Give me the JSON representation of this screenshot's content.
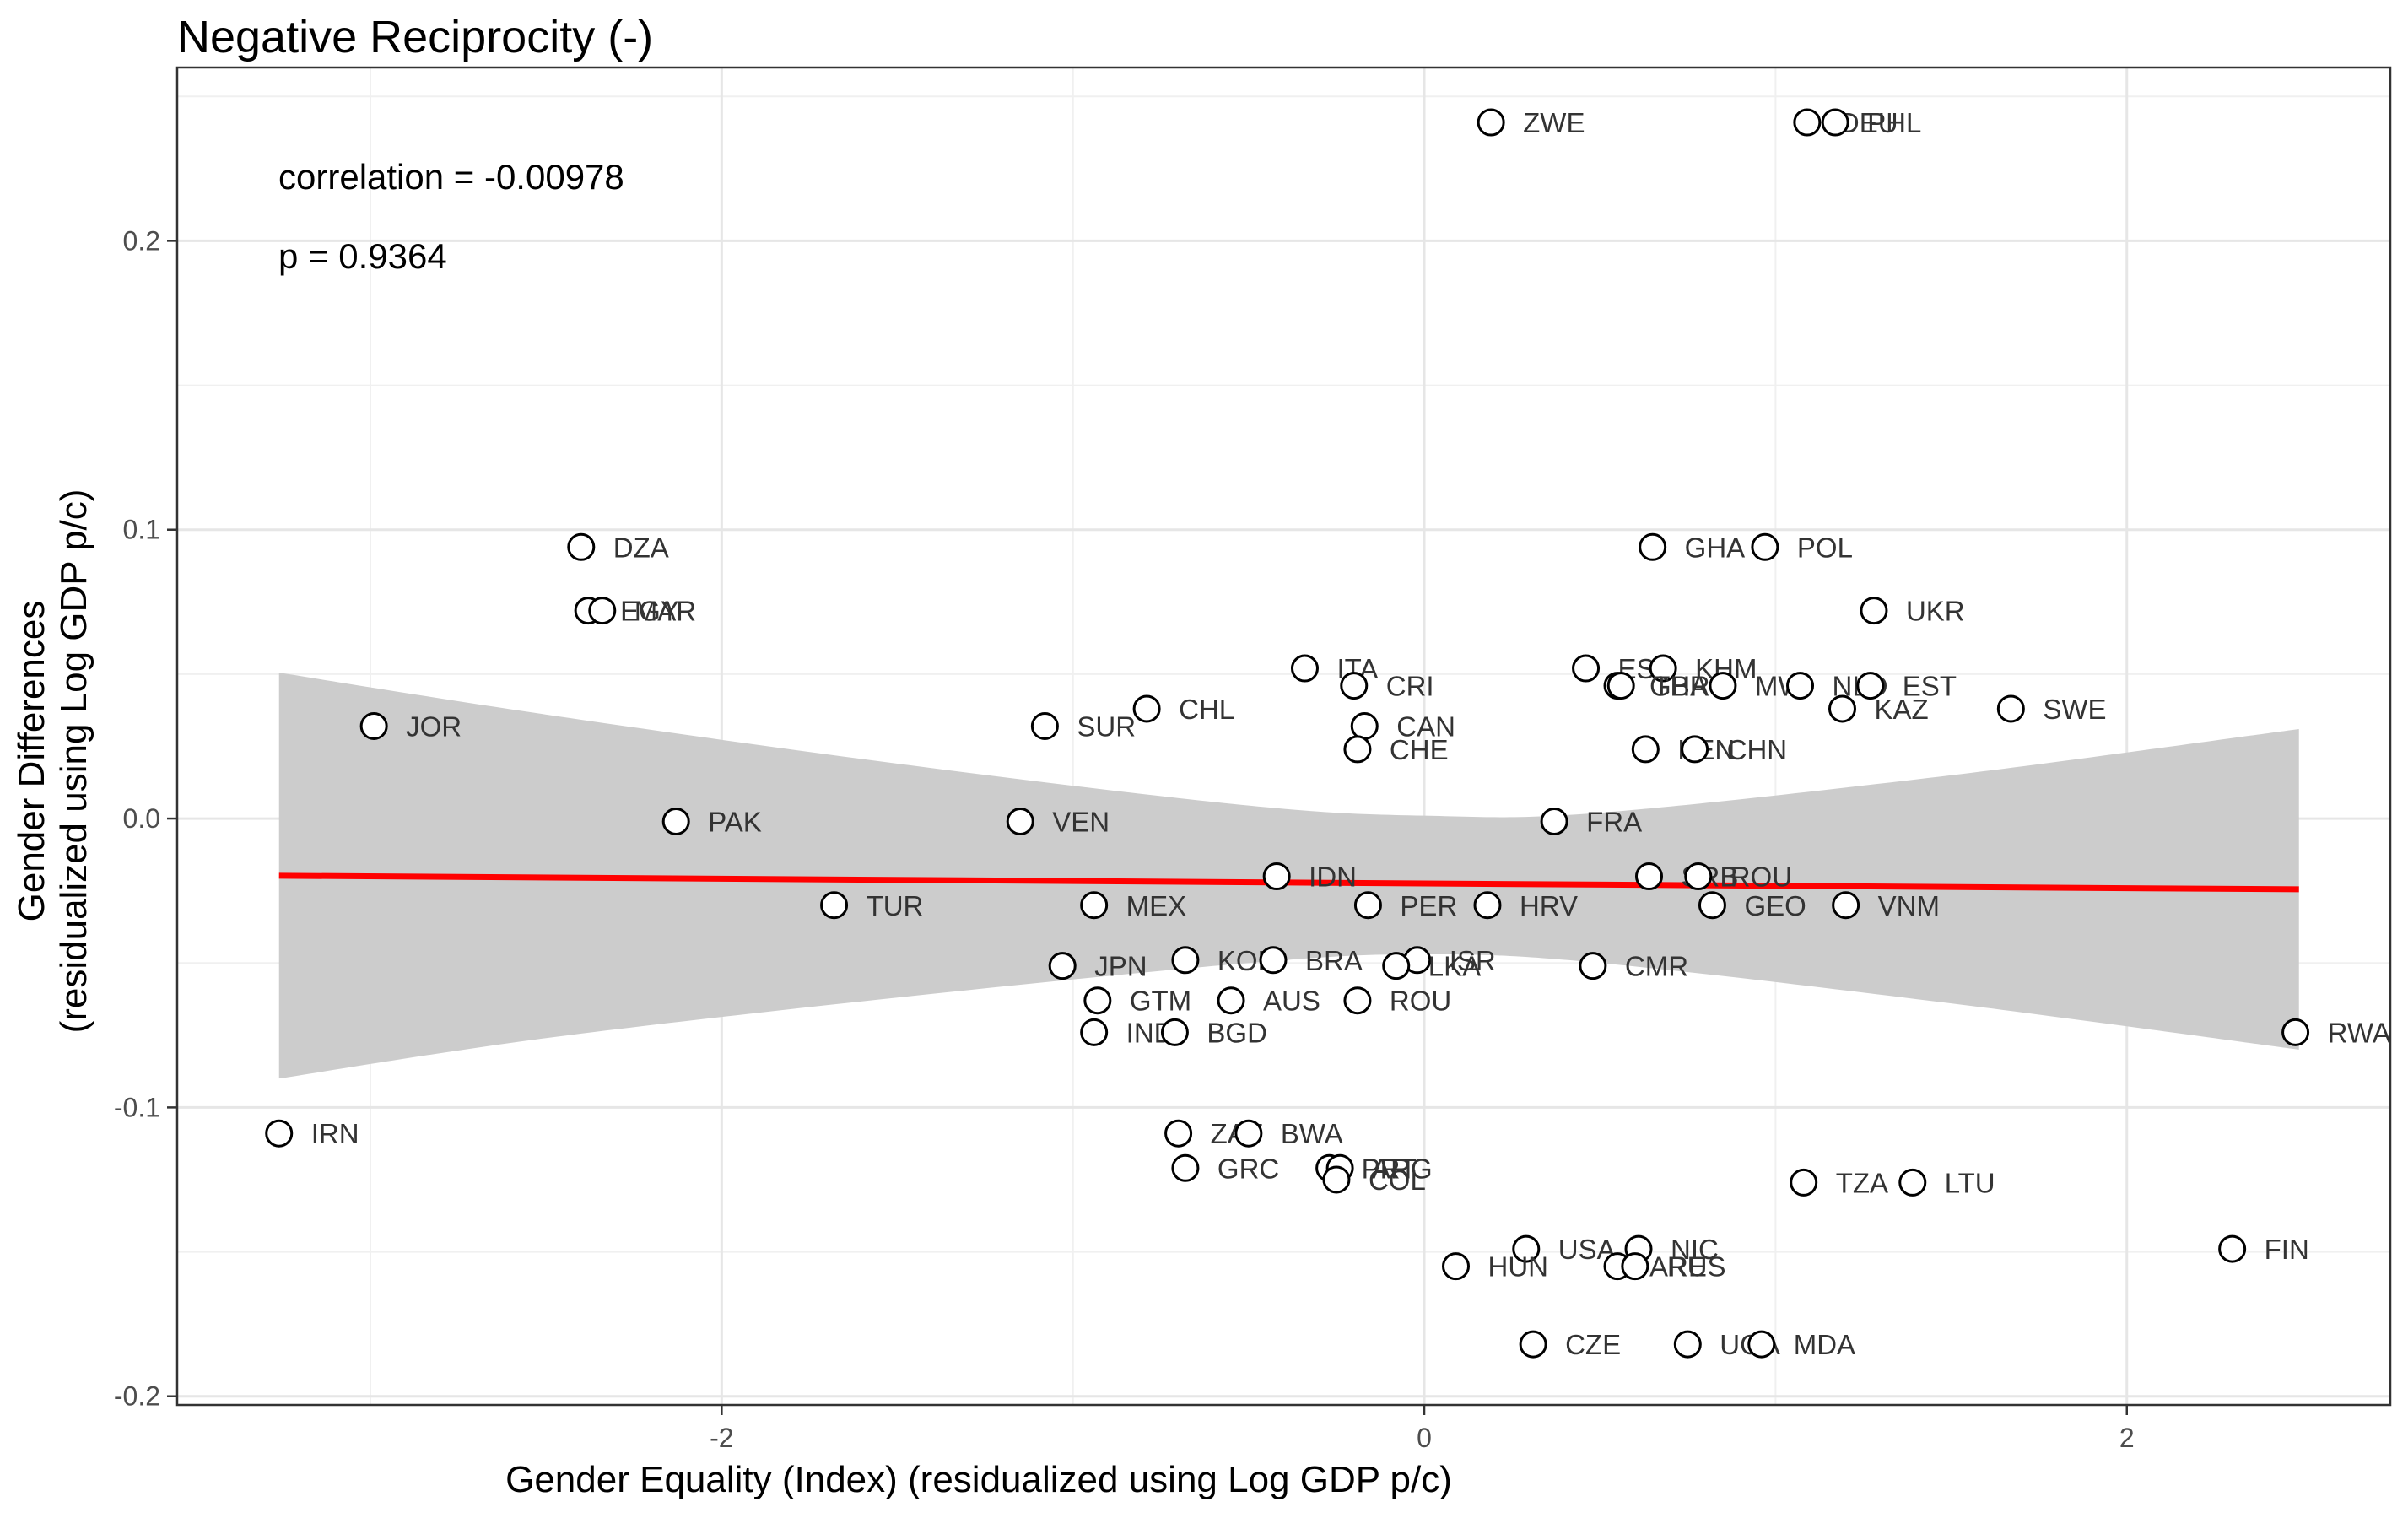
{
  "chart_data": {
    "type": "scatter",
    "title": "Negative Reciprocity (-)",
    "xlabel": "Gender Equality (Index) (residualized using Log GDP p/c)",
    "ylabel_line1": "Gender Differences",
    "ylabel_line2": "(residualized using Log GDP p/c)",
    "annotations": [
      "correlation = -0.00978",
      "p = 0.9364"
    ],
    "xlim": [
      -3.55,
      2.75
    ],
    "ylim": [
      -0.203,
      0.26
    ],
    "x_ticks": [
      -2,
      0,
      2
    ],
    "x_tick_labels": [
      "-2",
      "0",
      "2"
    ],
    "y_ticks": [
      -0.2,
      -0.1,
      0.0,
      0.1,
      0.2
    ],
    "y_tick_labels": [
      "-0.2",
      "-0.1",
      "0.0",
      "0.1",
      "0.2"
    ],
    "grid": true,
    "fit_line": {
      "color": "#ff0000",
      "x": [
        -3.26,
        2.49
      ],
      "y": [
        -0.0198,
        -0.0245
      ]
    },
    "confidence_band": {
      "color": "#cccccc",
      "x": [
        -3.26,
        -2.5,
        -1.5,
        -0.5,
        0.0,
        0.5,
        1.5,
        2.49
      ],
      "upper": [
        0.0505,
        0.036,
        0.019,
        0.0045,
        0.001,
        0.002,
        0.015,
        0.031
      ],
      "lower": [
        -0.09,
        -0.076,
        -0.062,
        -0.05,
        -0.047,
        -0.05,
        -0.064,
        -0.08
      ]
    },
    "points": [
      {
        "label": "ZWE",
        "x": 0.19,
        "y": 0.241
      },
      {
        "label": "DEU",
        "x": 1.09,
        "y": 0.241
      },
      {
        "label": "PHL",
        "x": 1.17,
        "y": 0.241
      },
      {
        "label": "DZA",
        "x": -2.4,
        "y": 0.094
      },
      {
        "label": "EGY",
        "x": -2.38,
        "y": 0.072
      },
      {
        "label": "MAR",
        "x": -2.34,
        "y": 0.072
      },
      {
        "label": "GHA",
        "x": 0.65,
        "y": 0.094
      },
      {
        "label": "POL",
        "x": 0.97,
        "y": 0.094
      },
      {
        "label": "UKR",
        "x": 1.28,
        "y": 0.072
      },
      {
        "label": "ITA",
        "x": -0.34,
        "y": 0.052
      },
      {
        "label": "ESP",
        "x": 0.46,
        "y": 0.052
      },
      {
        "label": "KHM",
        "x": 0.68,
        "y": 0.052
      },
      {
        "label": "CRI",
        "x": -0.2,
        "y": 0.046
      },
      {
        "label": "GBR",
        "x": 0.55,
        "y": 0.046
      },
      {
        "label": "THA",
        "x": 0.56,
        "y": 0.046
      },
      {
        "label": "MWI",
        "x": 0.85,
        "y": 0.046
      },
      {
        "label": "NLD",
        "x": 1.07,
        "y": 0.046
      },
      {
        "label": "EST",
        "x": 1.27,
        "y": 0.046
      },
      {
        "label": "CHL",
        "x": -0.79,
        "y": 0.038
      },
      {
        "label": "KAZ",
        "x": 1.19,
        "y": 0.038
      },
      {
        "label": "SWE",
        "x": 1.67,
        "y": 0.038
      },
      {
        "label": "JOR",
        "x": -2.99,
        "y": 0.032
      },
      {
        "label": "SUR",
        "x": -1.08,
        "y": 0.032
      },
      {
        "label": "CAN",
        "x": -0.17,
        "y": 0.032
      },
      {
        "label": "CHE",
        "x": -0.19,
        "y": 0.024
      },
      {
        "label": "KEN",
        "x": 0.63,
        "y": 0.024
      },
      {
        "label": "CHN",
        "x": 0.77,
        "y": 0.024
      },
      {
        "label": "PAK",
        "x": -2.13,
        "y": -0.001
      },
      {
        "label": "VEN",
        "x": -1.15,
        "y": -0.001
      },
      {
        "label": "FRA",
        "x": 0.37,
        "y": -0.001
      },
      {
        "label": "IDN",
        "x": -0.42,
        "y": -0.02
      },
      {
        "label": "SRB",
        "x": 0.64,
        "y": -0.02
      },
      {
        "label": "ROU",
        "x": 0.78,
        "y": -0.02
      },
      {
        "label": "TUR",
        "x": -1.68,
        "y": -0.03
      },
      {
        "label": "MEX",
        "x": -0.94,
        "y": -0.03
      },
      {
        "label": "PER",
        "x": -0.16,
        "y": -0.03
      },
      {
        "label": "HRV",
        "x": 0.18,
        "y": -0.03
      },
      {
        "label": "GEO",
        "x": 0.82,
        "y": -0.03
      },
      {
        "label": "VNM",
        "x": 1.2,
        "y": -0.03
      },
      {
        "label": "JPN",
        "x": -1.03,
        "y": -0.051
      },
      {
        "label": "KOR",
        "x": -0.68,
        "y": -0.049
      },
      {
        "label": "BRA",
        "x": -0.43,
        "y": -0.049
      },
      {
        "label": "ISR",
        "x": -0.02,
        "y": -0.049
      },
      {
        "label": "LKA",
        "x": -0.08,
        "y": -0.051
      },
      {
        "label": "CMR",
        "x": 0.48,
        "y": -0.051
      },
      {
        "label": "GTM",
        "x": -0.93,
        "y": -0.063
      },
      {
        "label": "AUS",
        "x": -0.55,
        "y": -0.063
      },
      {
        "label": "ROU",
        "x": -0.19,
        "y": -0.063
      },
      {
        "label": "IND",
        "x": -0.94,
        "y": -0.074
      },
      {
        "label": "BGD",
        "x": -0.71,
        "y": -0.074
      },
      {
        "label": "RWA",
        "x": 2.48,
        "y": -0.074
      },
      {
        "label": "IRN",
        "x": -3.26,
        "y": -0.109
      },
      {
        "label": "ZAF",
        "x": -0.7,
        "y": -0.109
      },
      {
        "label": "BWA",
        "x": -0.5,
        "y": -0.109
      },
      {
        "label": "GRC",
        "x": -0.68,
        "y": -0.121
      },
      {
        "label": "PRT",
        "x": -0.27,
        "y": -0.121
      },
      {
        "label": "ARG",
        "x": -0.24,
        "y": -0.121
      },
      {
        "label": "COL",
        "x": -0.25,
        "y": -0.125
      },
      {
        "label": "TZA",
        "x": 1.08,
        "y": -0.126
      },
      {
        "label": "LTU",
        "x": 1.39,
        "y": -0.126
      },
      {
        "label": "USA",
        "x": 0.29,
        "y": -0.149
      },
      {
        "label": "NIC",
        "x": 0.61,
        "y": -0.149
      },
      {
        "label": "FIN",
        "x": 2.3,
        "y": -0.149
      },
      {
        "label": "HUN",
        "x": 0.09,
        "y": -0.155
      },
      {
        "label": "ARE",
        "x": 0.55,
        "y": -0.155
      },
      {
        "label": "RUS",
        "x": 0.6,
        "y": -0.155
      },
      {
        "label": "CZE",
        "x": 0.31,
        "y": -0.182
      },
      {
        "label": "UGA",
        "x": 0.75,
        "y": -0.182
      },
      {
        "label": "MDA",
        "x": 0.96,
        "y": -0.182
      }
    ]
  }
}
